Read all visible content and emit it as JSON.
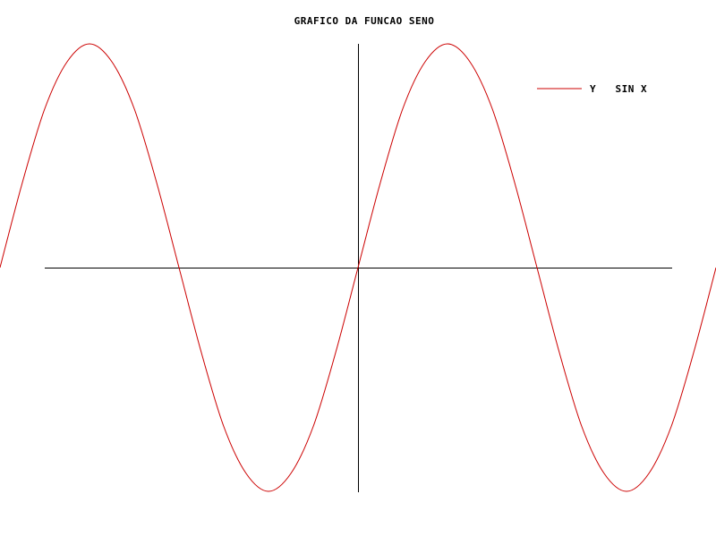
{
  "chart_data": {
    "type": "line",
    "title": "GRAFICO DA FUNCAO SENO",
    "xlabel": "",
    "ylabel": "",
    "xlim": [
      -8.0,
      8.0
    ],
    "ylim": [
      -1.0,
      1.0
    ],
    "grid": false,
    "legend_placement": "top-right",
    "axes": {
      "x_range": [
        -7.0,
        7.0
      ],
      "y_range": [
        -1.0,
        1.0
      ],
      "color": "#000000"
    },
    "series": [
      {
        "name": "Y   SIN X",
        "color": "#cc0000",
        "x": [
          -8.0,
          -7.5,
          -7.0,
          -6.5,
          -6.0,
          -5.5,
          -5.0,
          -4.5,
          -4.0,
          -3.5,
          -3.0,
          -2.5,
          -2.0,
          -1.5,
          -1.0,
          -0.5,
          0.0,
          0.5,
          1.0,
          1.5,
          2.0,
          2.5,
          3.0,
          3.5,
          4.0,
          4.5,
          5.0,
          5.5,
          6.0,
          6.5,
          7.0,
          7.5,
          8.0
        ],
        "y": [
          0.0,
          0.38,
          0.71,
          0.92,
          1.0,
          0.92,
          0.71,
          0.38,
          0.0,
          -0.38,
          -0.71,
          -0.92,
          -1.0,
          -0.92,
          -0.71,
          -0.38,
          0.0,
          0.38,
          0.71,
          0.92,
          1.0,
          0.92,
          0.71,
          0.38,
          0.0,
          -0.38,
          -0.71,
          -0.92,
          -1.0,
          -0.92,
          -0.71,
          -0.38,
          0.0
        ]
      }
    ]
  }
}
